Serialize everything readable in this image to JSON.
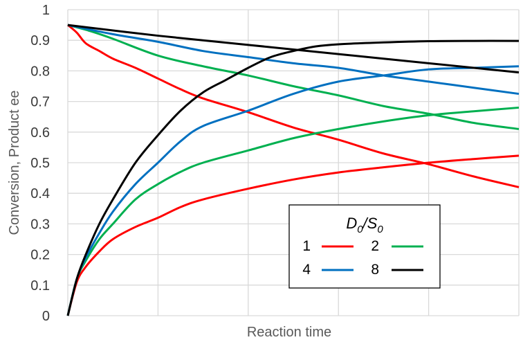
{
  "chart_data": {
    "type": "line",
    "title": "",
    "xlabel": "Reaction time",
    "ylabel": "Conversion, Product ee",
    "ylim": [
      0,
      1
    ],
    "xlim": [
      0,
      1
    ],
    "yticks": [
      "0",
      "0.1",
      "0.2",
      "0.3",
      "0.4",
      "0.5",
      "0.6",
      "0.7",
      "0.8",
      "0.9",
      "1"
    ],
    "x_tick_labels_shown": false,
    "grid": true,
    "legend": {
      "placement": "bottom-right",
      "title_main": "D",
      "title_sub1": "0",
      "title_mid": "/S",
      "title_sub2": "0"
    },
    "series": [
      {
        "name": "1",
        "color": "#ff0000",
        "conversion": {
          "x": [
            0,
            0.02,
            0.04,
            0.07,
            0.1,
            0.15,
            0.2,
            0.25,
            0.3,
            0.4,
            0.5,
            0.6,
            0.7,
            0.8,
            0.9,
            1.0
          ],
          "y": [
            0,
            0.11,
            0.16,
            0.21,
            0.25,
            0.29,
            0.32,
            0.355,
            0.38,
            0.415,
            0.445,
            0.468,
            0.485,
            0.5,
            0.512,
            0.523
          ]
        },
        "ee": {
          "x": [
            0,
            0.02,
            0.04,
            0.07,
            0.1,
            0.15,
            0.2,
            0.25,
            0.3,
            0.4,
            0.5,
            0.6,
            0.7,
            0.8,
            0.9,
            1.0
          ],
          "y": [
            0.95,
            0.925,
            0.89,
            0.865,
            0.84,
            0.81,
            0.775,
            0.74,
            0.71,
            0.665,
            0.615,
            0.575,
            0.53,
            0.495,
            0.455,
            0.42
          ]
        }
      },
      {
        "name": "2",
        "color": "#00b050",
        "conversion": {
          "x": [
            0,
            0.02,
            0.04,
            0.07,
            0.1,
            0.15,
            0.2,
            0.25,
            0.3,
            0.4,
            0.5,
            0.6,
            0.7,
            0.8,
            0.9,
            1.0
          ],
          "y": [
            0,
            0.12,
            0.18,
            0.25,
            0.3,
            0.38,
            0.43,
            0.47,
            0.5,
            0.54,
            0.58,
            0.61,
            0.635,
            0.655,
            0.668,
            0.68
          ]
        },
        "ee": {
          "x": [
            0,
            0.05,
            0.1,
            0.2,
            0.3,
            0.4,
            0.5,
            0.6,
            0.7,
            0.8,
            0.9,
            1.0
          ],
          "y": [
            0.95,
            0.93,
            0.905,
            0.85,
            0.815,
            0.785,
            0.75,
            0.72,
            0.685,
            0.66,
            0.63,
            0.61
          ]
        }
      },
      {
        "name": "4",
        "color": "#0070c0",
        "conversion": {
          "x": [
            0,
            0.02,
            0.04,
            0.07,
            0.1,
            0.15,
            0.2,
            0.25,
            0.3,
            0.4,
            0.5,
            0.6,
            0.7,
            0.8,
            0.9,
            1.0
          ],
          "y": [
            0,
            0.12,
            0.19,
            0.27,
            0.34,
            0.43,
            0.5,
            0.57,
            0.62,
            0.67,
            0.725,
            0.765,
            0.785,
            0.805,
            0.81,
            0.815
          ]
        },
        "ee": {
          "x": [
            0,
            0.1,
            0.2,
            0.3,
            0.4,
            0.5,
            0.6,
            0.7,
            0.8,
            0.9,
            1.0
          ],
          "y": [
            0.95,
            0.92,
            0.895,
            0.865,
            0.845,
            0.825,
            0.81,
            0.785,
            0.765,
            0.745,
            0.725
          ]
        }
      },
      {
        "name": "8",
        "color": "#000000",
        "conversion": {
          "x": [
            0,
            0.02,
            0.04,
            0.07,
            0.1,
            0.15,
            0.2,
            0.25,
            0.3,
            0.35,
            0.4,
            0.45,
            0.5,
            0.55,
            0.6,
            0.7,
            0.8,
            0.9,
            1.0
          ],
          "y": [
            0,
            0.12,
            0.2,
            0.3,
            0.38,
            0.5,
            0.59,
            0.67,
            0.73,
            0.77,
            0.81,
            0.845,
            0.865,
            0.88,
            0.887,
            0.893,
            0.897,
            0.898,
            0.898
          ]
        },
        "ee": {
          "x": [
            0,
            0.2,
            0.4,
            0.6,
            0.8,
            1.0
          ],
          "y": [
            0.95,
            0.915,
            0.885,
            0.855,
            0.825,
            0.795
          ]
        }
      }
    ]
  }
}
